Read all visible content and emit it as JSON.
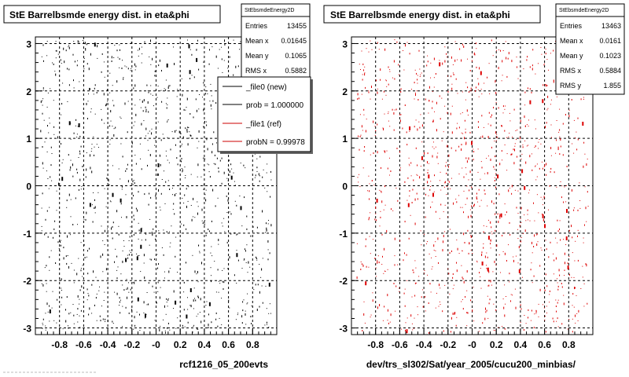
{
  "chart_data": [
    {
      "type": "scatter",
      "title": "StE Barrelbsmde energy dist. in eta&phi",
      "xlabel": "",
      "ylabel": "",
      "xlim": [
        -1.0,
        1.0
      ],
      "ylim": [
        -3.14,
        3.14
      ],
      "x_ticks": [
        "-0.8",
        "-0.6",
        "-0.4",
        "-0.2",
        "-0",
        "0.2",
        "0.4",
        "0.6",
        "0.8"
      ],
      "x_tick_values": [
        -0.8,
        -0.6,
        -0.4,
        -0.2,
        0,
        0.2,
        0.4,
        0.6,
        0.8
      ],
      "y_ticks": [
        "3",
        "2",
        "1",
        "0",
        "-1",
        "-2",
        "-3"
      ],
      "y_tick_values": [
        3,
        2,
        1,
        0,
        -1,
        -2,
        -3
      ],
      "grid": true,
      "marker_color": "#000000",
      "stats": {
        "name": "StEbsmdeEnergy2D",
        "rows": [
          {
            "label": "Entries",
            "value": "13455"
          },
          {
            "label": "Mean x",
            "value": "0.01645"
          },
          {
            "label": "Mean y",
            "value": "0.1065"
          },
          {
            "label": "RMS x",
            "value": "0.5882"
          }
        ]
      },
      "legend": {
        "placement": "top-right",
        "entries": [
          {
            "label": "_file0 (new)",
            "color": "#000000"
          },
          {
            "label": "prob = 1.000000",
            "color": "#000000"
          },
          {
            "label": "_file1 (ref)",
            "color": "#cc0000"
          },
          {
            "label": "probN = 0.99978",
            "color": "#cc0000"
          }
        ]
      },
      "footer": "rcf1216_05_200evts",
      "seed": 17
    },
    {
      "type": "scatter",
      "title": "StE Barrelbsmde energy dist. in eta&phi",
      "xlabel": "",
      "ylabel": "",
      "xlim": [
        -1.0,
        1.0
      ],
      "ylim": [
        -3.14,
        3.14
      ],
      "x_ticks": [
        "-0.8",
        "-0.6",
        "-0.4",
        "-0.2",
        "-0",
        "0.2",
        "0.4",
        "0.6",
        "0.8"
      ],
      "x_tick_values": [
        -0.8,
        -0.6,
        -0.4,
        -0.2,
        0,
        0.2,
        0.4,
        0.6,
        0.8
      ],
      "y_ticks": [
        "3",
        "2",
        "1",
        "0",
        "-1",
        "-2",
        "-3"
      ],
      "y_tick_values": [
        3,
        2,
        1,
        0,
        -1,
        -2,
        -3
      ],
      "grid": true,
      "marker_color": "#dd0000",
      "stats": {
        "name": "StEbsmdeEnergy2D",
        "rows": [
          {
            "label": "Entries",
            "value": "13463"
          },
          {
            "label": "Mean x",
            "value": "0.0161"
          },
          {
            "label": "Mean y",
            "value": "0.1023"
          },
          {
            "label": "RMS x",
            "value": "0.5884"
          },
          {
            "label": "RMS y",
            "value": "1.855"
          }
        ]
      },
      "footer": "dev/trs_sl302/Sat/year_2005/cucu200_minbias/",
      "seed": 91
    }
  ]
}
